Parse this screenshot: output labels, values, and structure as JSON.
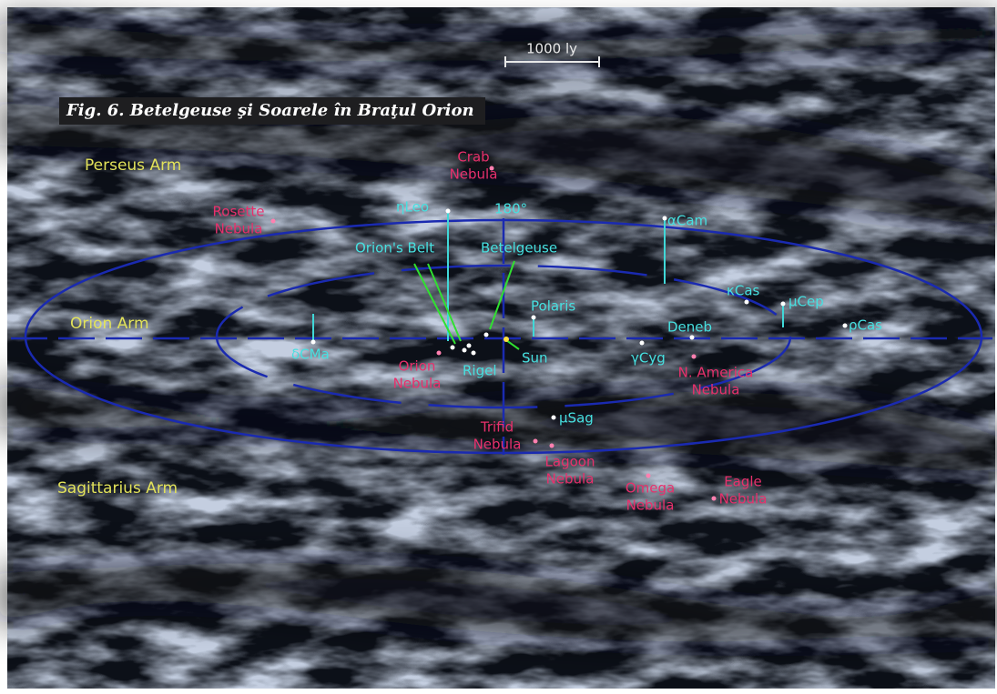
{
  "figure": {
    "caption": "Fig. 6. Betelgeuse şi Soarele în Braţul Orion",
    "scale_bar": "1000 ly"
  },
  "arms": [
    "Perseus Arm",
    "Orion Arm",
    "Sagittarius Arm"
  ],
  "nebulae": [
    [
      "Crab",
      "Nebula"
    ],
    [
      "Rosette",
      "Nebula"
    ],
    [
      "Orion",
      "Nebula"
    ],
    [
      "N. America",
      "Nebula"
    ],
    [
      "Trifid",
      "Nebula"
    ],
    [
      "Lagoon",
      "Nebula"
    ],
    [
      "Omega",
      "Nebula"
    ],
    [
      "Eagle",
      "Nebula"
    ]
  ],
  "stars": [
    "ηLeo",
    "αCam",
    "κCas",
    "μCep",
    "ρCas",
    "δCMa",
    "Deneb",
    "γCyg",
    "μSag",
    "Polaris",
    "Rigel"
  ],
  "markers": [
    "180°",
    "Orion's Belt",
    "Betelgeuse",
    "Sun"
  ]
}
